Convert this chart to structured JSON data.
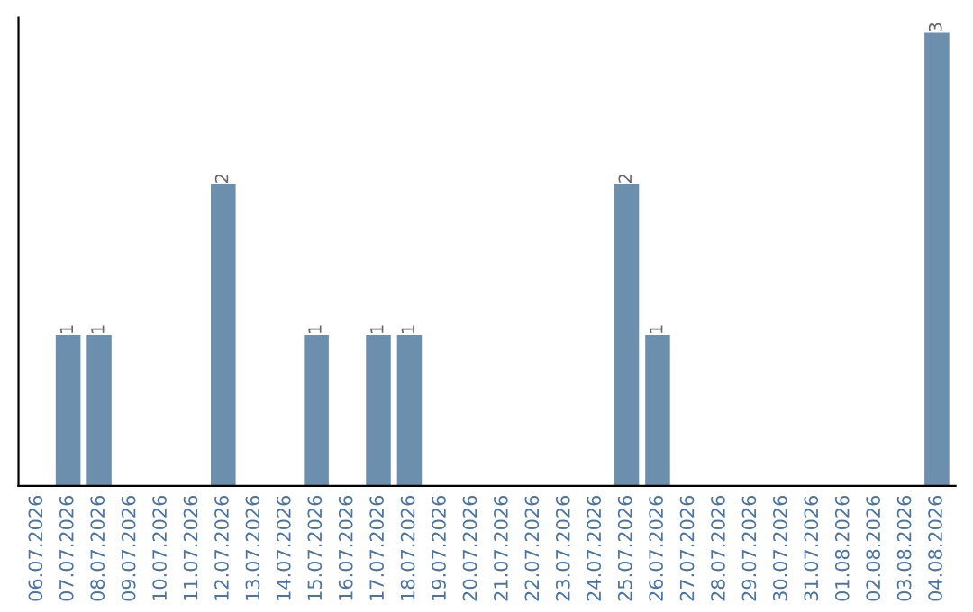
{
  "chart_data": {
    "type": "bar",
    "categories": [
      "06.07.2026",
      "07.07.2026",
      "08.07.2026",
      "09.07.2026",
      "10.07.2026",
      "11.07.2026",
      "12.07.2026",
      "13.07.2026",
      "14.07.2026",
      "15.07.2026",
      "16.07.2026",
      "17.07.2026",
      "18.07.2026",
      "19.07.2026",
      "20.07.2026",
      "21.07.2026",
      "22.07.2026",
      "23.07.2026",
      "24.07.2026",
      "25.07.2026",
      "26.07.2026",
      "27.07.2026",
      "28.07.2026",
      "29.07.2026",
      "30.07.2026",
      "31.07.2026",
      "01.08.2026",
      "02.08.2026",
      "03.08.2026",
      "04.08.2026"
    ],
    "values": [
      0,
      1,
      1,
      0,
      0,
      0,
      2,
      0,
      0,
      1,
      0,
      1,
      1,
      0,
      0,
      0,
      0,
      0,
      0,
      2,
      1,
      0,
      0,
      0,
      0,
      0,
      0,
      0,
      0,
      3
    ],
    "value_labels": [
      null,
      "1",
      "1",
      null,
      null,
      null,
      "2",
      null,
      null,
      "1",
      null,
      "1",
      "1",
      null,
      null,
      null,
      null,
      null,
      null,
      "2",
      "1",
      null,
      null,
      null,
      null,
      null,
      null,
      null,
      null,
      "3"
    ],
    "color": "#6d8fae",
    "ylim": [
      0,
      3.1
    ],
    "tick_labels": "x",
    "grid": false,
    "legend": false
  }
}
